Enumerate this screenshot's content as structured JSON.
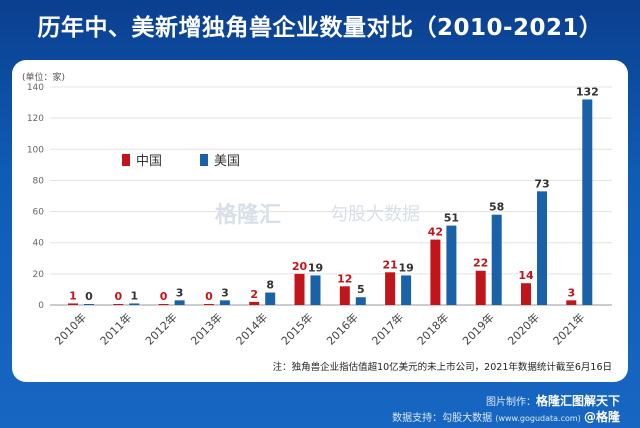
{
  "title": "历年中、美新增独角兽企业数量对比（2010-2021）",
  "footer": {
    "made_label": "图片制作：",
    "made_by": "格隆汇图解天下",
    "data_label": "数据支持：",
    "data_by": "勾股大数据",
    "data_url": "(www.gogudata.com)",
    "weibo": "@格隆"
  },
  "watermark": {
    "left": "格隆汇",
    "right": "勾股大数据"
  },
  "chart_data": {
    "type": "bar",
    "title": "历年中、美新增独角兽企业数量对比（2010-2021）",
    "unit_label": "(单位：家)",
    "categories": [
      "2010年",
      "2011年",
      "2012年",
      "2013年",
      "2014年",
      "2015年",
      "2016年",
      "2017年",
      "2018年",
      "2019年",
      "2020年",
      "2021年"
    ],
    "series": [
      {
        "name": "中国",
        "color": "#c0151b",
        "values": [
          1,
          0,
          0,
          0,
          2,
          20,
          12,
          21,
          42,
          22,
          14,
          3
        ]
      },
      {
        "name": "美国",
        "color": "#1a62a8",
        "values": [
          0,
          1,
          3,
          3,
          8,
          19,
          5,
          19,
          51,
          58,
          73,
          132
        ]
      }
    ],
    "yticks": [
      0,
      20,
      40,
      60,
      80,
      100,
      120,
      140
    ],
    "ylim": [
      0,
      140
    ],
    "legend": "top-left",
    "grid": true,
    "note": "注：独角兽企业指估值超10亿美元的未上市公司，2021年数据统计截至6月16日"
  }
}
